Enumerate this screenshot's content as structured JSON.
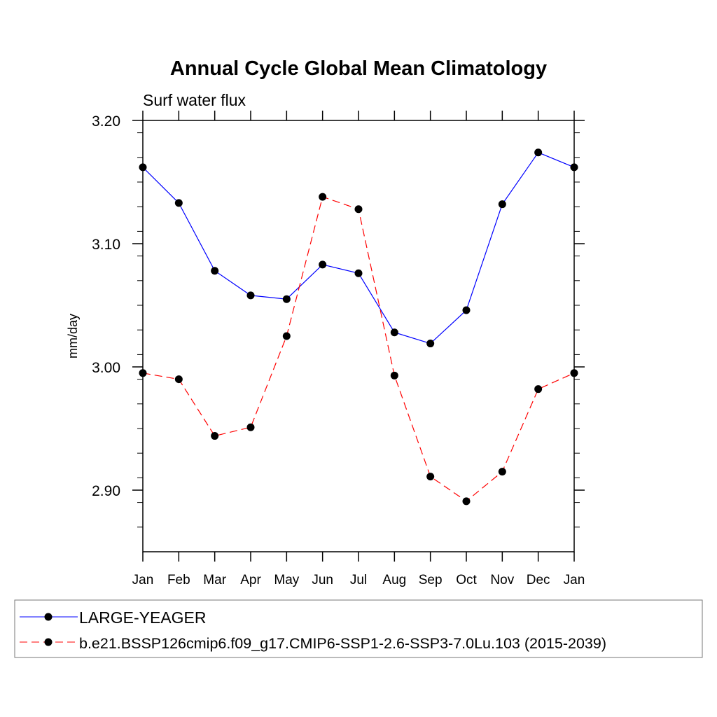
{
  "chart_data": {
    "type": "line",
    "title": "Annual Cycle Global Mean Climatology",
    "subtitle": "Surf water flux",
    "xlabel": "",
    "ylabel": "mm/day",
    "categories": [
      "Jan",
      "Feb",
      "Mar",
      "Apr",
      "May",
      "Jun",
      "Jul",
      "Aug",
      "Sep",
      "Oct",
      "Nov",
      "Dec",
      "Jan"
    ],
    "ylim": [
      2.85,
      3.2
    ],
    "yticks": [
      2.9,
      3.0,
      3.1,
      3.2
    ],
    "ytick_labels": [
      "2.90",
      "3.00",
      "3.10",
      "3.20"
    ],
    "y_minor_step": 0.02,
    "grid": false,
    "legend_position": "bottom",
    "series": [
      {
        "name": "LARGE-YEAGER",
        "color": "#0000ff",
        "line_style": "solid",
        "marker": "filled-circle",
        "values": [
          3.162,
          3.133,
          3.078,
          3.058,
          3.055,
          3.083,
          3.076,
          3.028,
          3.019,
          3.046,
          3.132,
          3.174,
          3.162
        ]
      },
      {
        "name": "b.e21.BSSP126cmip6.f09_g17.CMIP6-SSP1-2.6-SSP3-7.0Lu.103 (2015-2039)",
        "color": "#ff0000",
        "line_style": "dashed",
        "marker": "filled-circle",
        "values": [
          2.995,
          2.99,
          2.944,
          2.951,
          3.025,
          3.138,
          3.128,
          2.993,
          2.911,
          2.891,
          2.915,
          2.982,
          2.995
        ]
      }
    ]
  }
}
